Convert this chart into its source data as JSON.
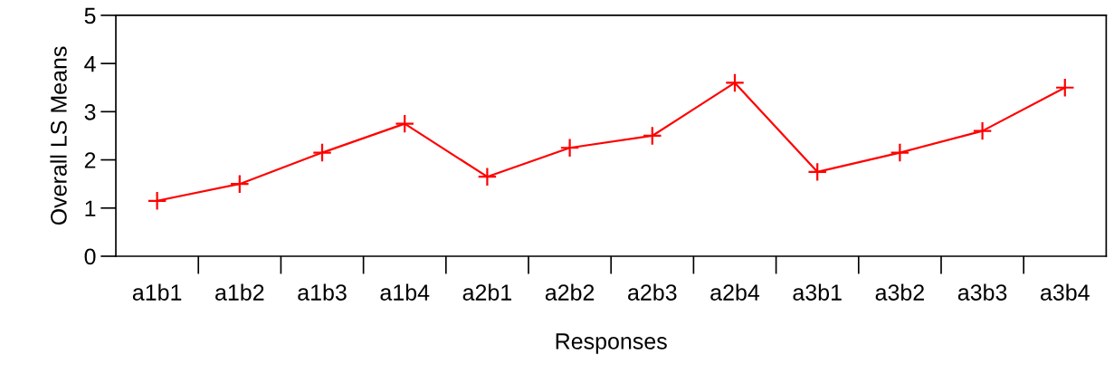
{
  "chart_data": {
    "type": "line",
    "xlabel": "Responses",
    "ylabel": "Overall LS Means",
    "categories": [
      "a1b1",
      "a1b2",
      "a1b3",
      "a1b4",
      "a2b1",
      "a2b2",
      "a2b3",
      "a2b4",
      "a3b1",
      "a3b2",
      "a3b3",
      "a3b4"
    ],
    "series": [
      {
        "color": "#ff0000",
        "values": [
          1.15,
          1.5,
          2.15,
          2.75,
          1.65,
          2.25,
          2.5,
          3.6,
          1.75,
          2.15,
          2.6,
          3.5
        ]
      }
    ],
    "ylim": [
      0,
      5
    ],
    "yticks": [
      0,
      1,
      2,
      3,
      4,
      5
    ],
    "grid": false,
    "legend": false,
    "marker": "cross",
    "line_style": "solid"
  }
}
